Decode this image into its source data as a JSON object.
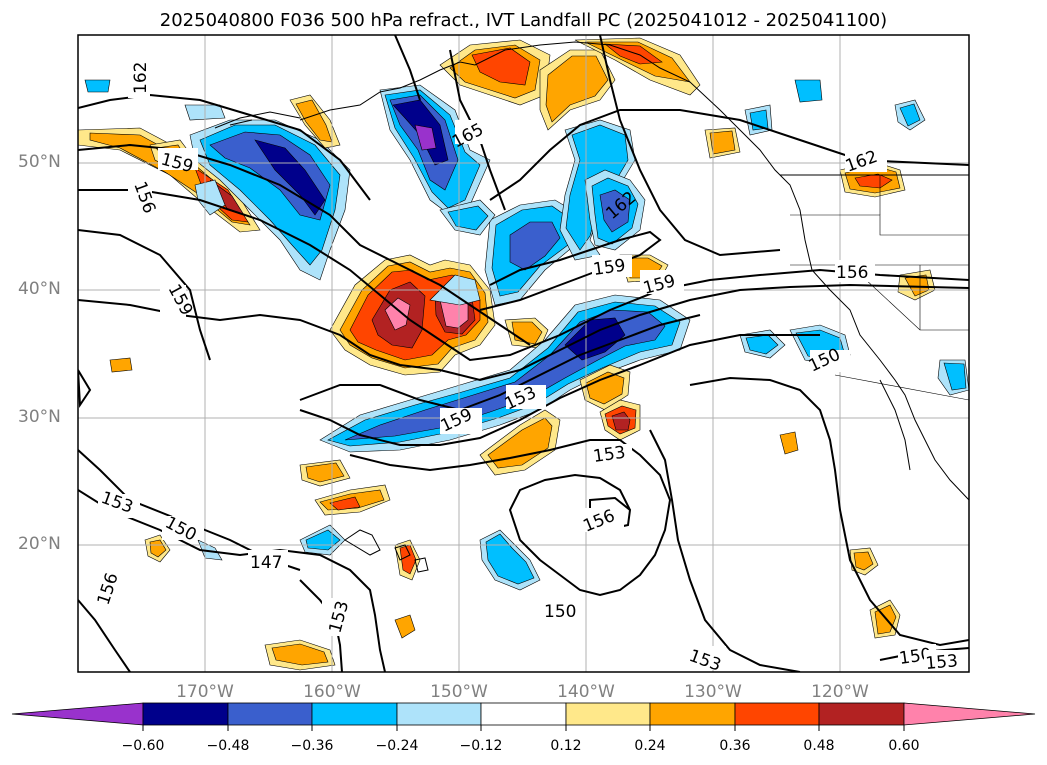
{
  "title": "2025040800 F036 500 hPa refract., IVT Landfall PC (2025041012 - 2025041100)",
  "latitude_labels": [
    "50°N",
    "40°N",
    "30°N",
    "20°N"
  ],
  "longitude_labels": [
    "170°W",
    "160°W",
    "150°W",
    "140°W",
    "130°W",
    "120°W"
  ],
  "contour_labels": [
    "162",
    "159",
    "156",
    "159",
    "165",
    "162",
    "162",
    "159",
    "159",
    "156",
    "153",
    "159",
    "153",
    "150",
    "153",
    "150",
    "147",
    "153",
    "156",
    "150",
    "153",
    "150",
    "153",
    "156"
  ],
  "colorbar": {
    "ticks": [
      "−0.60",
      "−0.48",
      "−0.36",
      "−0.24",
      "−0.12",
      "0.12",
      "0.24",
      "0.36",
      "0.48",
      "0.60"
    ],
    "colors": {
      "under": "#9932cc",
      "b1": "#00008b",
      "b2": "#3a5fcd",
      "b3": "#00bfff",
      "b4": "#aee3fa",
      "neutral": "#ffffff",
      "p1": "#ffe88a",
      "p2": "#ffa500",
      "p3": "#ff4500",
      "p4": "#b22222",
      "over": "#ff82ab"
    }
  }
}
